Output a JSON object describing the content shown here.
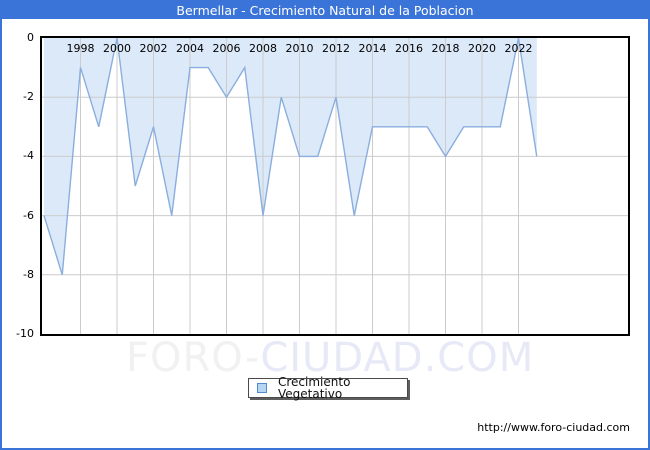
{
  "header": {
    "title": "Bermellar - Crecimiento Natural de la Poblacion"
  },
  "legend": {
    "label": "Crecimiento Vegetativo"
  },
  "watermark": {
    "part1": "FORO-",
    "part2": "CIUDAD.COM"
  },
  "footer": {
    "url": "http://www.foro-ciudad.com"
  },
  "colors": {
    "titlebar_bg": "#3a74d8",
    "outer_border": "#3a74d8",
    "area_fill": "#dce9f9",
    "area_line": "#8aaede",
    "gridline": "#cccccc",
    "plot_border": "#000000",
    "tick_text": "#000000"
  },
  "chart_data": {
    "type": "area",
    "title": "Bermellar - Crecimiento Natural de la Poblacion",
    "series_name": "Crecimiento Vegetativo",
    "x": [
      1996,
      1997,
      1998,
      1999,
      2000,
      2001,
      2002,
      2003,
      2004,
      2005,
      2006,
      2007,
      2008,
      2009,
      2010,
      2011,
      2012,
      2013,
      2014,
      2015,
      2016,
      2017,
      2018,
      2019,
      2020,
      2021,
      2022,
      2023
    ],
    "values": [
      -6,
      -8,
      -1,
      -3,
      0,
      -5,
      -3,
      -6,
      -1,
      -1,
      -2,
      -1,
      -6,
      -2,
      -4,
      -4,
      -2,
      -6,
      -3,
      -3,
      -3,
      -3,
      -4,
      -3,
      -3,
      -3,
      0,
      -4
    ],
    "x_tick_labels": [
      "1998",
      "2000",
      "2002",
      "2004",
      "2006",
      "2008",
      "2010",
      "2012",
      "2014",
      "2016",
      "2018",
      "2020",
      "2022"
    ],
    "y_tick_labels": [
      "0",
      "-2",
      "-4",
      "-6",
      "-8",
      "-10"
    ],
    "y_gridlines": [
      -2,
      -4,
      -6,
      -8
    ],
    "ylim": [
      -10,
      0
    ],
    "xlim": [
      1996,
      2024
    ],
    "grid": true,
    "baseline": 0,
    "legend_position": "bottom-center"
  }
}
